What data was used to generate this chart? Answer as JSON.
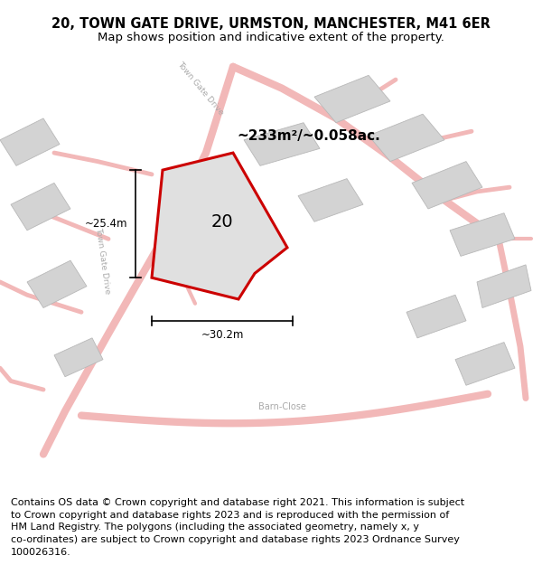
{
  "title_line1": "20, TOWN GATE DRIVE, URMSTON, MANCHESTER, M41 6ER",
  "title_line2": "Map shows position and indicative extent of the property.",
  "footer": "Contains OS data © Crown copyright and database right 2021. This information is subject\nto Crown copyright and database rights 2023 and is reproduced with the permission of\nHM Land Registry. The polygons (including the associated geometry, namely x, y\nco-ordinates) are subject to Crown copyright and database rights 2023 Ordnance Survey\n100026316.",
  "area_label": "~233m²/~0.058ac.",
  "number_label": "20",
  "dim_horizontal": "~30.2m",
  "dim_vertical": "~25.4m",
  "road_label_upper": "Town Gate Drive",
  "road_label_left": "Town Gate Drive",
  "road_label_bottom": "Barn-Close",
  "map_bg": "#eeecec",
  "road_color": "#f2b8b8",
  "building_color": "#d3d3d3",
  "highlight_color": "#cc0000",
  "title_fontsize": 10.5,
  "subtitle_fontsize": 9.5,
  "footer_fontsize": 8.0
}
